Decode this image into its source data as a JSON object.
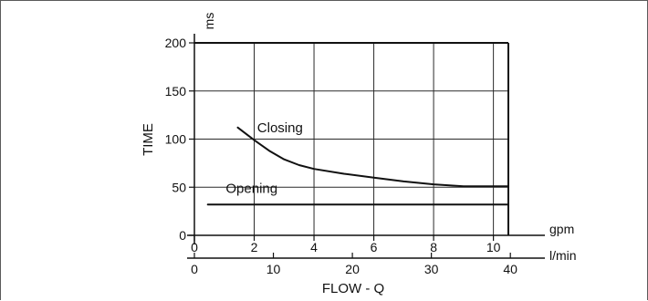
{
  "chart_data": {
    "type": "line",
    "xlabel": "FLOW - Q",
    "ylabel": "TIME",
    "y_unit": "ms",
    "x_unit_primary": "gpm",
    "x_unit_secondary": "l/min",
    "xlim": [
      0,
      10.5
    ],
    "ylim": [
      0,
      200
    ],
    "x_ticks": [
      "0",
      "2",
      "4",
      "6",
      "8",
      "10"
    ],
    "x_ticks_secondary": [
      "0",
      "10",
      "20",
      "30",
      "40"
    ],
    "y_ticks": [
      "0",
      "50",
      "100",
      "150",
      "200"
    ],
    "grid": true,
    "series": [
      {
        "name": "Closing",
        "x": [
          1.45,
          2.0,
          2.5,
          3.0,
          3.5,
          4.0,
          5.0,
          6.0,
          7.0,
          8.0,
          9.0,
          10.0,
          10.5
        ],
        "y": [
          112,
          99,
          88,
          79,
          73,
          69,
          64,
          60,
          56,
          53,
          51,
          51,
          51
        ]
      },
      {
        "name": "Opening",
        "x": [
          0.45,
          10.5
        ],
        "y": [
          32,
          32
        ]
      }
    ],
    "annotations": [
      {
        "text": "Closing",
        "x": 2.1,
        "y": 107
      },
      {
        "text": "Opening",
        "x": 1.05,
        "y": 44
      }
    ]
  }
}
